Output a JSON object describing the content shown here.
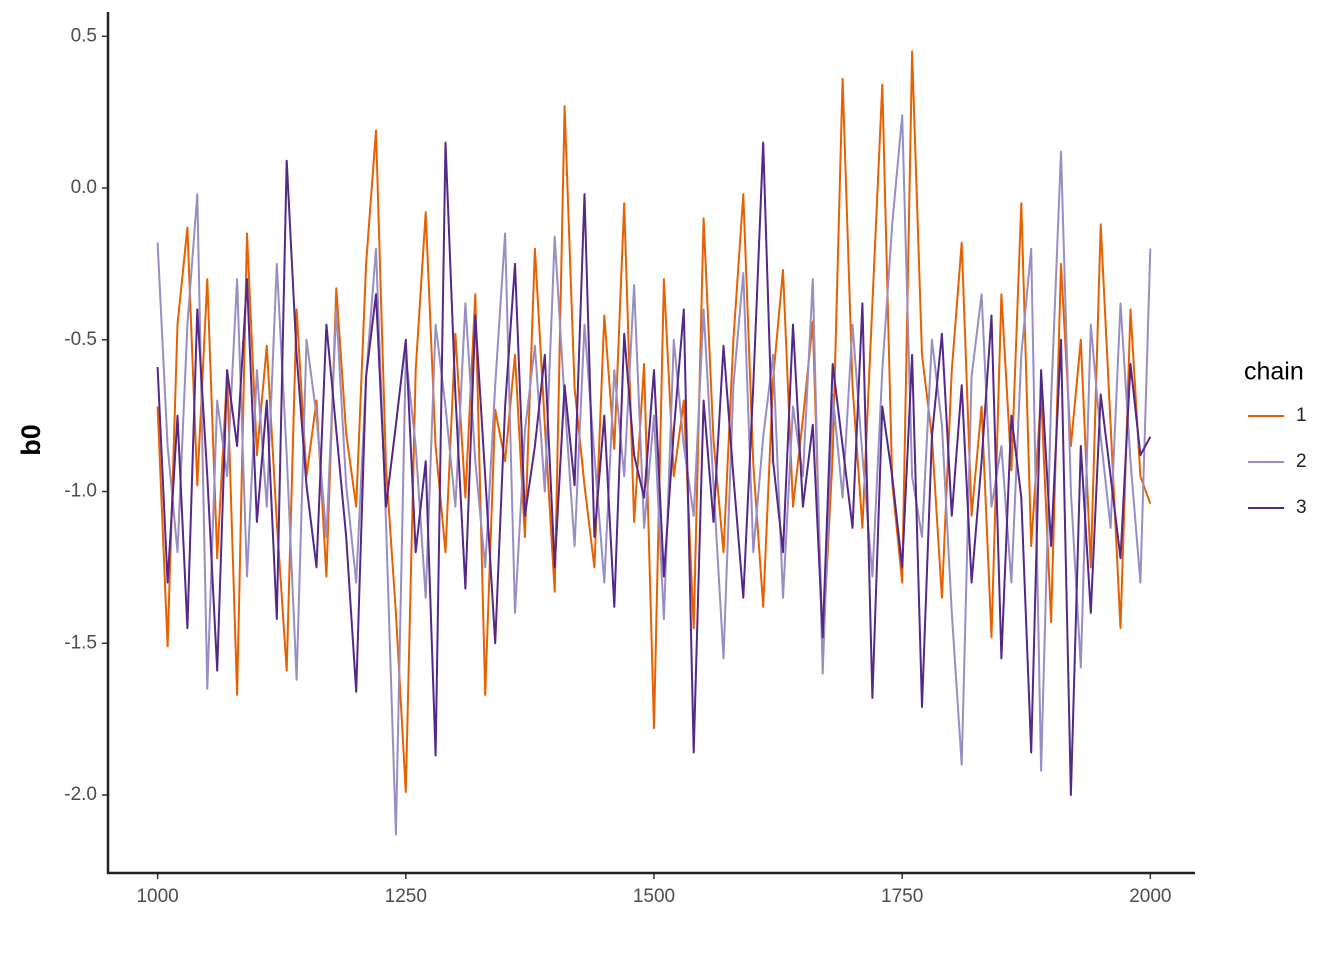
{
  "chart_data": {
    "type": "line",
    "y_label": "b0",
    "legend_title": "chain",
    "legend_position": "right",
    "x": [
      1000,
      1010,
      1020,
      1030,
      1040,
      1050,
      1060,
      1070,
      1080,
      1090,
      1100,
      1110,
      1120,
      1130,
      1140,
      1150,
      1160,
      1170,
      1180,
      1190,
      1200,
      1210,
      1220,
      1230,
      1240,
      1250,
      1260,
      1270,
      1280,
      1290,
      1300,
      1310,
      1320,
      1330,
      1340,
      1350,
      1360,
      1370,
      1380,
      1390,
      1400,
      1410,
      1420,
      1430,
      1440,
      1450,
      1460,
      1470,
      1480,
      1490,
      1500,
      1510,
      1520,
      1530,
      1540,
      1550,
      1560,
      1570,
      1580,
      1590,
      1600,
      1610,
      1620,
      1630,
      1640,
      1650,
      1660,
      1670,
      1680,
      1690,
      1700,
      1710,
      1720,
      1730,
      1740,
      1750,
      1760,
      1770,
      1780,
      1790,
      1800,
      1810,
      1820,
      1830,
      1840,
      1850,
      1860,
      1870,
      1880,
      1890,
      1900,
      1910,
      1920,
      1930,
      1940,
      1950,
      1960,
      1970,
      1980,
      1990,
      2000
    ],
    "series": [
      {
        "name": "1",
        "color": "#e66101",
        "values": [
          -0.72,
          -1.51,
          -0.45,
          -0.13,
          -0.98,
          -0.3,
          -1.22,
          -0.61,
          -1.67,
          -0.15,
          -0.88,
          -0.52,
          -1.1,
          -1.59,
          -0.4,
          -0.95,
          -0.7,
          -1.28,
          -0.33,
          -0.81,
          -1.05,
          -0.25,
          0.19,
          -0.92,
          -1.4,
          -1.99,
          -0.6,
          -0.08,
          -0.85,
          -1.2,
          -0.48,
          -1.02,
          -0.35,
          -1.67,
          -0.73,
          -0.9,
          -0.55,
          -1.15,
          -0.2,
          -0.78,
          -1.33,
          0.27,
          -0.66,
          -0.98,
          -1.25,
          -0.42,
          -0.86,
          -0.05,
          -1.1,
          -0.58,
          -1.78,
          -0.3,
          -0.95,
          -0.7,
          -1.45,
          -0.1,
          -0.83,
          -1.2,
          -0.5,
          -0.02,
          -0.91,
          -1.38,
          -0.63,
          -0.27,
          -1.05,
          -0.76,
          -0.44,
          -1.52,
          -0.88,
          0.36,
          -0.65,
          -1.12,
          -0.38,
          0.34,
          -0.97,
          -1.3,
          0.45,
          -0.55,
          -0.82,
          -1.35,
          -0.6,
          -0.18,
          -1.08,
          -0.72,
          -1.48,
          -0.35,
          -0.93,
          -0.05,
          -1.18,
          -0.68,
          -1.43,
          -0.25,
          -0.85,
          -0.5,
          -1.25,
          -0.12,
          -0.78,
          -1.45,
          -0.4,
          -0.95,
          -1.04
        ]
      },
      {
        "name": "2",
        "color": "#998ec3",
        "values": [
          -0.18,
          -0.85,
          -1.2,
          -0.45,
          -0.02,
          -1.65,
          -0.7,
          -0.95,
          -0.3,
          -1.28,
          -0.6,
          -1.05,
          -0.25,
          -0.88,
          -1.62,
          -0.5,
          -0.75,
          -1.15,
          -0.4,
          -0.98,
          -1.3,
          -0.62,
          -0.2,
          -1.1,
          -2.13,
          -0.55,
          -0.85,
          -1.35,
          -0.45,
          -0.72,
          -1.05,
          -0.38,
          -0.9,
          -1.25,
          -0.65,
          -0.15,
          -1.4,
          -0.8,
          -0.52,
          -1.0,
          -0.16,
          -0.7,
          -1.18,
          -0.45,
          -0.88,
          -1.3,
          -0.6,
          -0.95,
          -0.32,
          -1.12,
          -0.75,
          -1.42,
          -0.5,
          -0.85,
          -1.08,
          -0.4,
          -0.98,
          -1.55,
          -0.65,
          -0.28,
          -1.2,
          -0.82,
          -0.55,
          -1.35,
          -0.72,
          -0.95,
          -0.3,
          -1.6,
          -0.68,
          -1.02,
          -0.45,
          -0.88,
          -1.28,
          -0.6,
          -0.12,
          0.24,
          -0.95,
          -1.15,
          -0.5,
          -0.78,
          -1.4,
          -1.9,
          -0.62,
          -0.35,
          -1.05,
          -0.85,
          -1.3,
          -0.55,
          -0.2,
          -1.92,
          -0.7,
          0.12,
          -1.0,
          -1.58,
          -0.45,
          -0.82,
          -1.12,
          -0.38,
          -0.9,
          -1.3,
          -0.2
        ]
      },
      {
        "name": "3",
        "color": "#542788",
        "values": [
          -0.59,
          -1.3,
          -0.75,
          -1.45,
          -0.4,
          -0.95,
          -1.59,
          -0.6,
          -0.85,
          -0.3,
          -1.1,
          -0.7,
          -1.42,
          0.09,
          -0.55,
          -0.98,
          -1.25,
          -0.45,
          -0.8,
          -1.15,
          -1.66,
          -0.62,
          -0.35,
          -1.05,
          -0.78,
          -0.5,
          -1.2,
          -0.9,
          -1.87,
          0.15,
          -0.68,
          -1.32,
          -0.42,
          -0.95,
          -1.5,
          -0.72,
          -0.25,
          -1.08,
          -0.85,
          -0.55,
          -1.25,
          -0.65,
          -0.98,
          -0.02,
          -1.15,
          -0.75,
          -1.38,
          -0.48,
          -0.88,
          -1.02,
          -0.6,
          -1.28,
          -0.8,
          -0.4,
          -1.86,
          -0.7,
          -1.1,
          -0.52,
          -0.95,
          -1.35,
          -0.65,
          0.15,
          -0.9,
          -1.2,
          -0.45,
          -1.05,
          -0.78,
          -1.48,
          -0.58,
          -0.85,
          -1.12,
          -0.38,
          -1.68,
          -0.72,
          -0.95,
          -1.25,
          -0.55,
          -1.71,
          -0.82,
          -0.48,
          -1.08,
          -0.65,
          -1.3,
          -0.9,
          -0.42,
          -1.55,
          -0.75,
          -1.02,
          -1.86,
          -0.6,
          -1.18,
          -0.5,
          -2.0,
          -0.85,
          -1.4,
          -0.68,
          -0.95,
          -1.22,
          -0.58,
          -0.88,
          -0.82
        ]
      }
    ],
    "xlim": [
      950,
      2045
    ],
    "xticks": [
      1000,
      1250,
      1500,
      1750,
      2000
    ],
    "ylim": [
      -2.257,
      0.58
    ],
    "yticks": [
      0.5,
      {
        "value": 0,
        "label": "0.0"
      },
      -0.5,
      {
        "value": -1,
        "label": "-1.0"
      },
      -1.5,
      {
        "value": -2,
        "label": "-2.0"
      }
    ]
  }
}
